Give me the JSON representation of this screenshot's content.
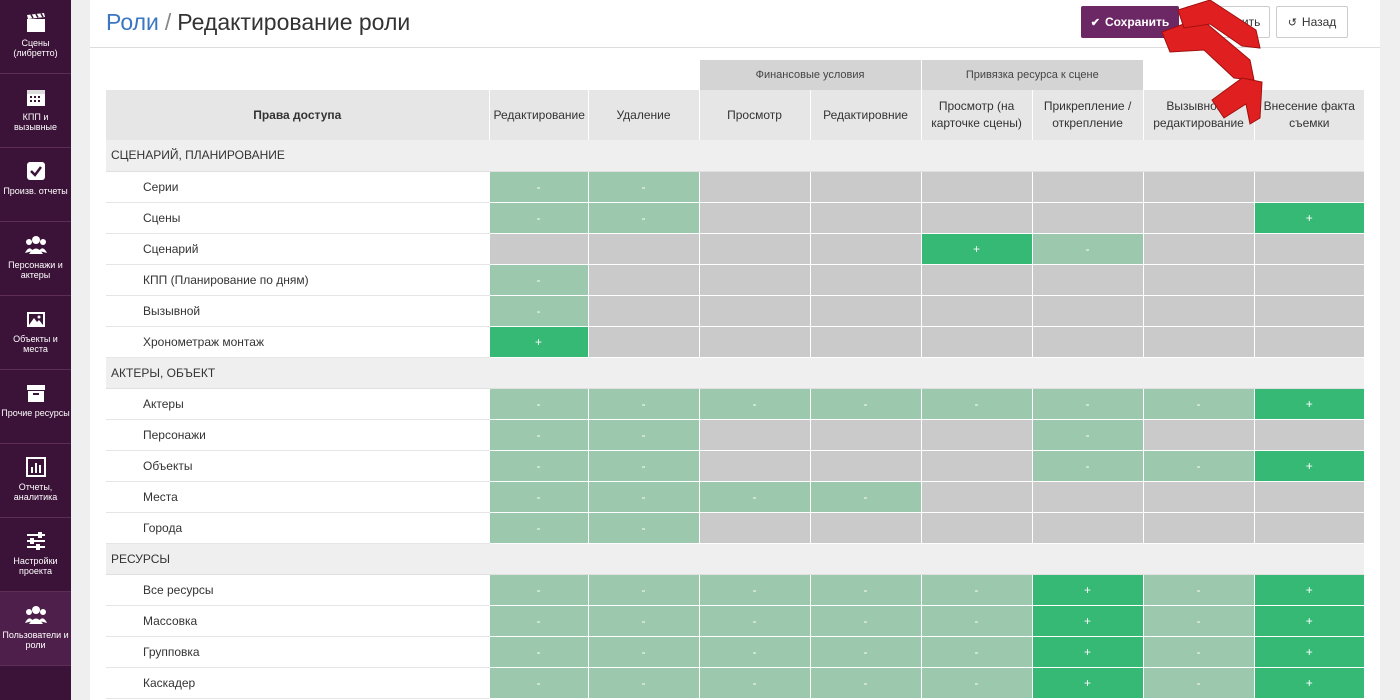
{
  "sidebar": {
    "items": [
      {
        "label": "Сцены (либретто)",
        "icon": "clapperboard-icon"
      },
      {
        "label": "КПП и вызывные",
        "icon": "calendar-icon"
      },
      {
        "label": "Произв. отчеты",
        "icon": "checkbox-icon"
      },
      {
        "label": "Персонажи и актеры",
        "icon": "users-icon"
      },
      {
        "label": "Объекты и места",
        "icon": "image-icon"
      },
      {
        "label": "Прочие ресурсы",
        "icon": "archive-icon"
      },
      {
        "label": "Отчеты, аналитика",
        "icon": "bar-chart-icon"
      },
      {
        "label": "Настройки проекта",
        "icon": "sliders-icon"
      },
      {
        "label": "Пользователи и роли",
        "icon": "users-icon"
      }
    ]
  },
  "header": {
    "breadcrumb_link": "Роли",
    "breadcrumb_sep": "/",
    "page_title": "Редактирование роли",
    "save_label": "Сохранить",
    "delete_label": "Удалить",
    "back_label": "Назад"
  },
  "table": {
    "group_headers": {
      "financial": "Финансовые условия",
      "binding": "Привязка ресурса к сцене"
    },
    "columns": [
      "Права доступа",
      "Редактирование",
      "Удаление",
      "Просмотр",
      "Редактировние",
      "Просмотр (на карточке сцены)",
      "Прикрепление / открепление",
      "Вызывной - редактирование",
      "Внесение факта съемки"
    ],
    "sections": [
      {
        "title": "СЦЕНАРИЙ, ПЛАНИРОВАНИЕ",
        "rows": [
          {
            "label": "Серии",
            "cells": [
              "-",
              "-",
              "",
              "",
              "",
              "",
              "",
              ""
            ],
            "states": [
              "light",
              "light",
              "gray",
              "gray",
              "gray",
              "gray",
              "gray",
              "gray"
            ]
          },
          {
            "label": "Сцены",
            "cells": [
              "-",
              "-",
              "",
              "",
              "",
              "",
              "",
              "+"
            ],
            "states": [
              "light",
              "light",
              "gray",
              "gray",
              "gray",
              "gray",
              "gray",
              "green"
            ]
          },
          {
            "label": "Сценарий",
            "cells": [
              "",
              "",
              "",
              "",
              "+",
              "-",
              "",
              ""
            ],
            "states": [
              "gray",
              "gray",
              "gray",
              "gray",
              "green",
              "light",
              "gray",
              "gray"
            ]
          },
          {
            "label": "КПП (Планирование по дням)",
            "cells": [
              "-",
              "",
              "",
              "",
              "",
              "",
              "",
              ""
            ],
            "states": [
              "light",
              "gray",
              "gray",
              "gray",
              "gray",
              "gray",
              "gray",
              "gray"
            ]
          },
          {
            "label": "Вызывной",
            "cells": [
              "-",
              "",
              "",
              "",
              "",
              "",
              "",
              ""
            ],
            "states": [
              "light",
              "gray",
              "gray",
              "gray",
              "gray",
              "gray",
              "gray",
              "gray"
            ]
          },
          {
            "label": "Хронометраж монтаж",
            "cells": [
              "+",
              "",
              "",
              "",
              "",
              "",
              "",
              ""
            ],
            "states": [
              "green",
              "gray",
              "gray",
              "gray",
              "gray",
              "gray",
              "gray",
              "gray"
            ]
          }
        ]
      },
      {
        "title": "АКТЕРЫ, ОБЪЕКТ",
        "rows": [
          {
            "label": "Актеры",
            "cells": [
              "-",
              "-",
              "-",
              "-",
              "-",
              "-",
              "-",
              "+"
            ],
            "states": [
              "light",
              "light",
              "light",
              "light",
              "light",
              "light",
              "light",
              "green"
            ]
          },
          {
            "label": "Персонажи",
            "cells": [
              "-",
              "-",
              "",
              "",
              "",
              "-",
              "",
              ""
            ],
            "states": [
              "light",
              "light",
              "gray",
              "gray",
              "gray",
              "light",
              "gray",
              "gray"
            ]
          },
          {
            "label": "Объекты",
            "cells": [
              "-",
              "-",
              "",
              "",
              "",
              "-",
              "-",
              "+"
            ],
            "states": [
              "light",
              "light",
              "gray",
              "gray",
              "gray",
              "light",
              "light",
              "green"
            ]
          },
          {
            "label": "Места",
            "cells": [
              "-",
              "-",
              "-",
              "-",
              "",
              "",
              "",
              ""
            ],
            "states": [
              "light",
              "light",
              "light",
              "light",
              "gray",
              "gray",
              "gray",
              "gray"
            ]
          },
          {
            "label": "Города",
            "cells": [
              "-",
              "-",
              "",
              "",
              "",
              "",
              "",
              ""
            ],
            "states": [
              "light",
              "light",
              "gray",
              "gray",
              "gray",
              "gray",
              "gray",
              "gray"
            ]
          }
        ]
      },
      {
        "title": "РЕСУРСЫ",
        "rows": [
          {
            "label": "Все ресурсы",
            "cells": [
              "-",
              "-",
              "-",
              "-",
              "-",
              "+",
              "-",
              "+"
            ],
            "states": [
              "light",
              "light",
              "light",
              "light",
              "light",
              "green",
              "light",
              "green"
            ]
          },
          {
            "label": "Массовка",
            "cells": [
              "-",
              "-",
              "-",
              "-",
              "-",
              "+",
              "-",
              "+"
            ],
            "states": [
              "light",
              "light",
              "light",
              "light",
              "light",
              "green",
              "light",
              "green"
            ]
          },
          {
            "label": "Групповка",
            "cells": [
              "-",
              "-",
              "-",
              "-",
              "-",
              "+",
              "-",
              "+"
            ],
            "states": [
              "light",
              "light",
              "light",
              "light",
              "light",
              "green",
              "light",
              "green"
            ]
          },
          {
            "label": "Каскадер",
            "cells": [
              "-",
              "-",
              "-",
              "-",
              "-",
              "+",
              "-",
              "+"
            ],
            "states": [
              "light",
              "light",
              "light",
              "light",
              "light",
              "green",
              "light",
              "green"
            ]
          }
        ]
      }
    ]
  },
  "colors": {
    "sidebar_bg": "#3b1238",
    "accent": "#6c2765",
    "cell_gray": "#cacaca",
    "cell_light_green": "#9cc8ae",
    "cell_green": "#35b974",
    "arrow_red": "#e02020"
  }
}
